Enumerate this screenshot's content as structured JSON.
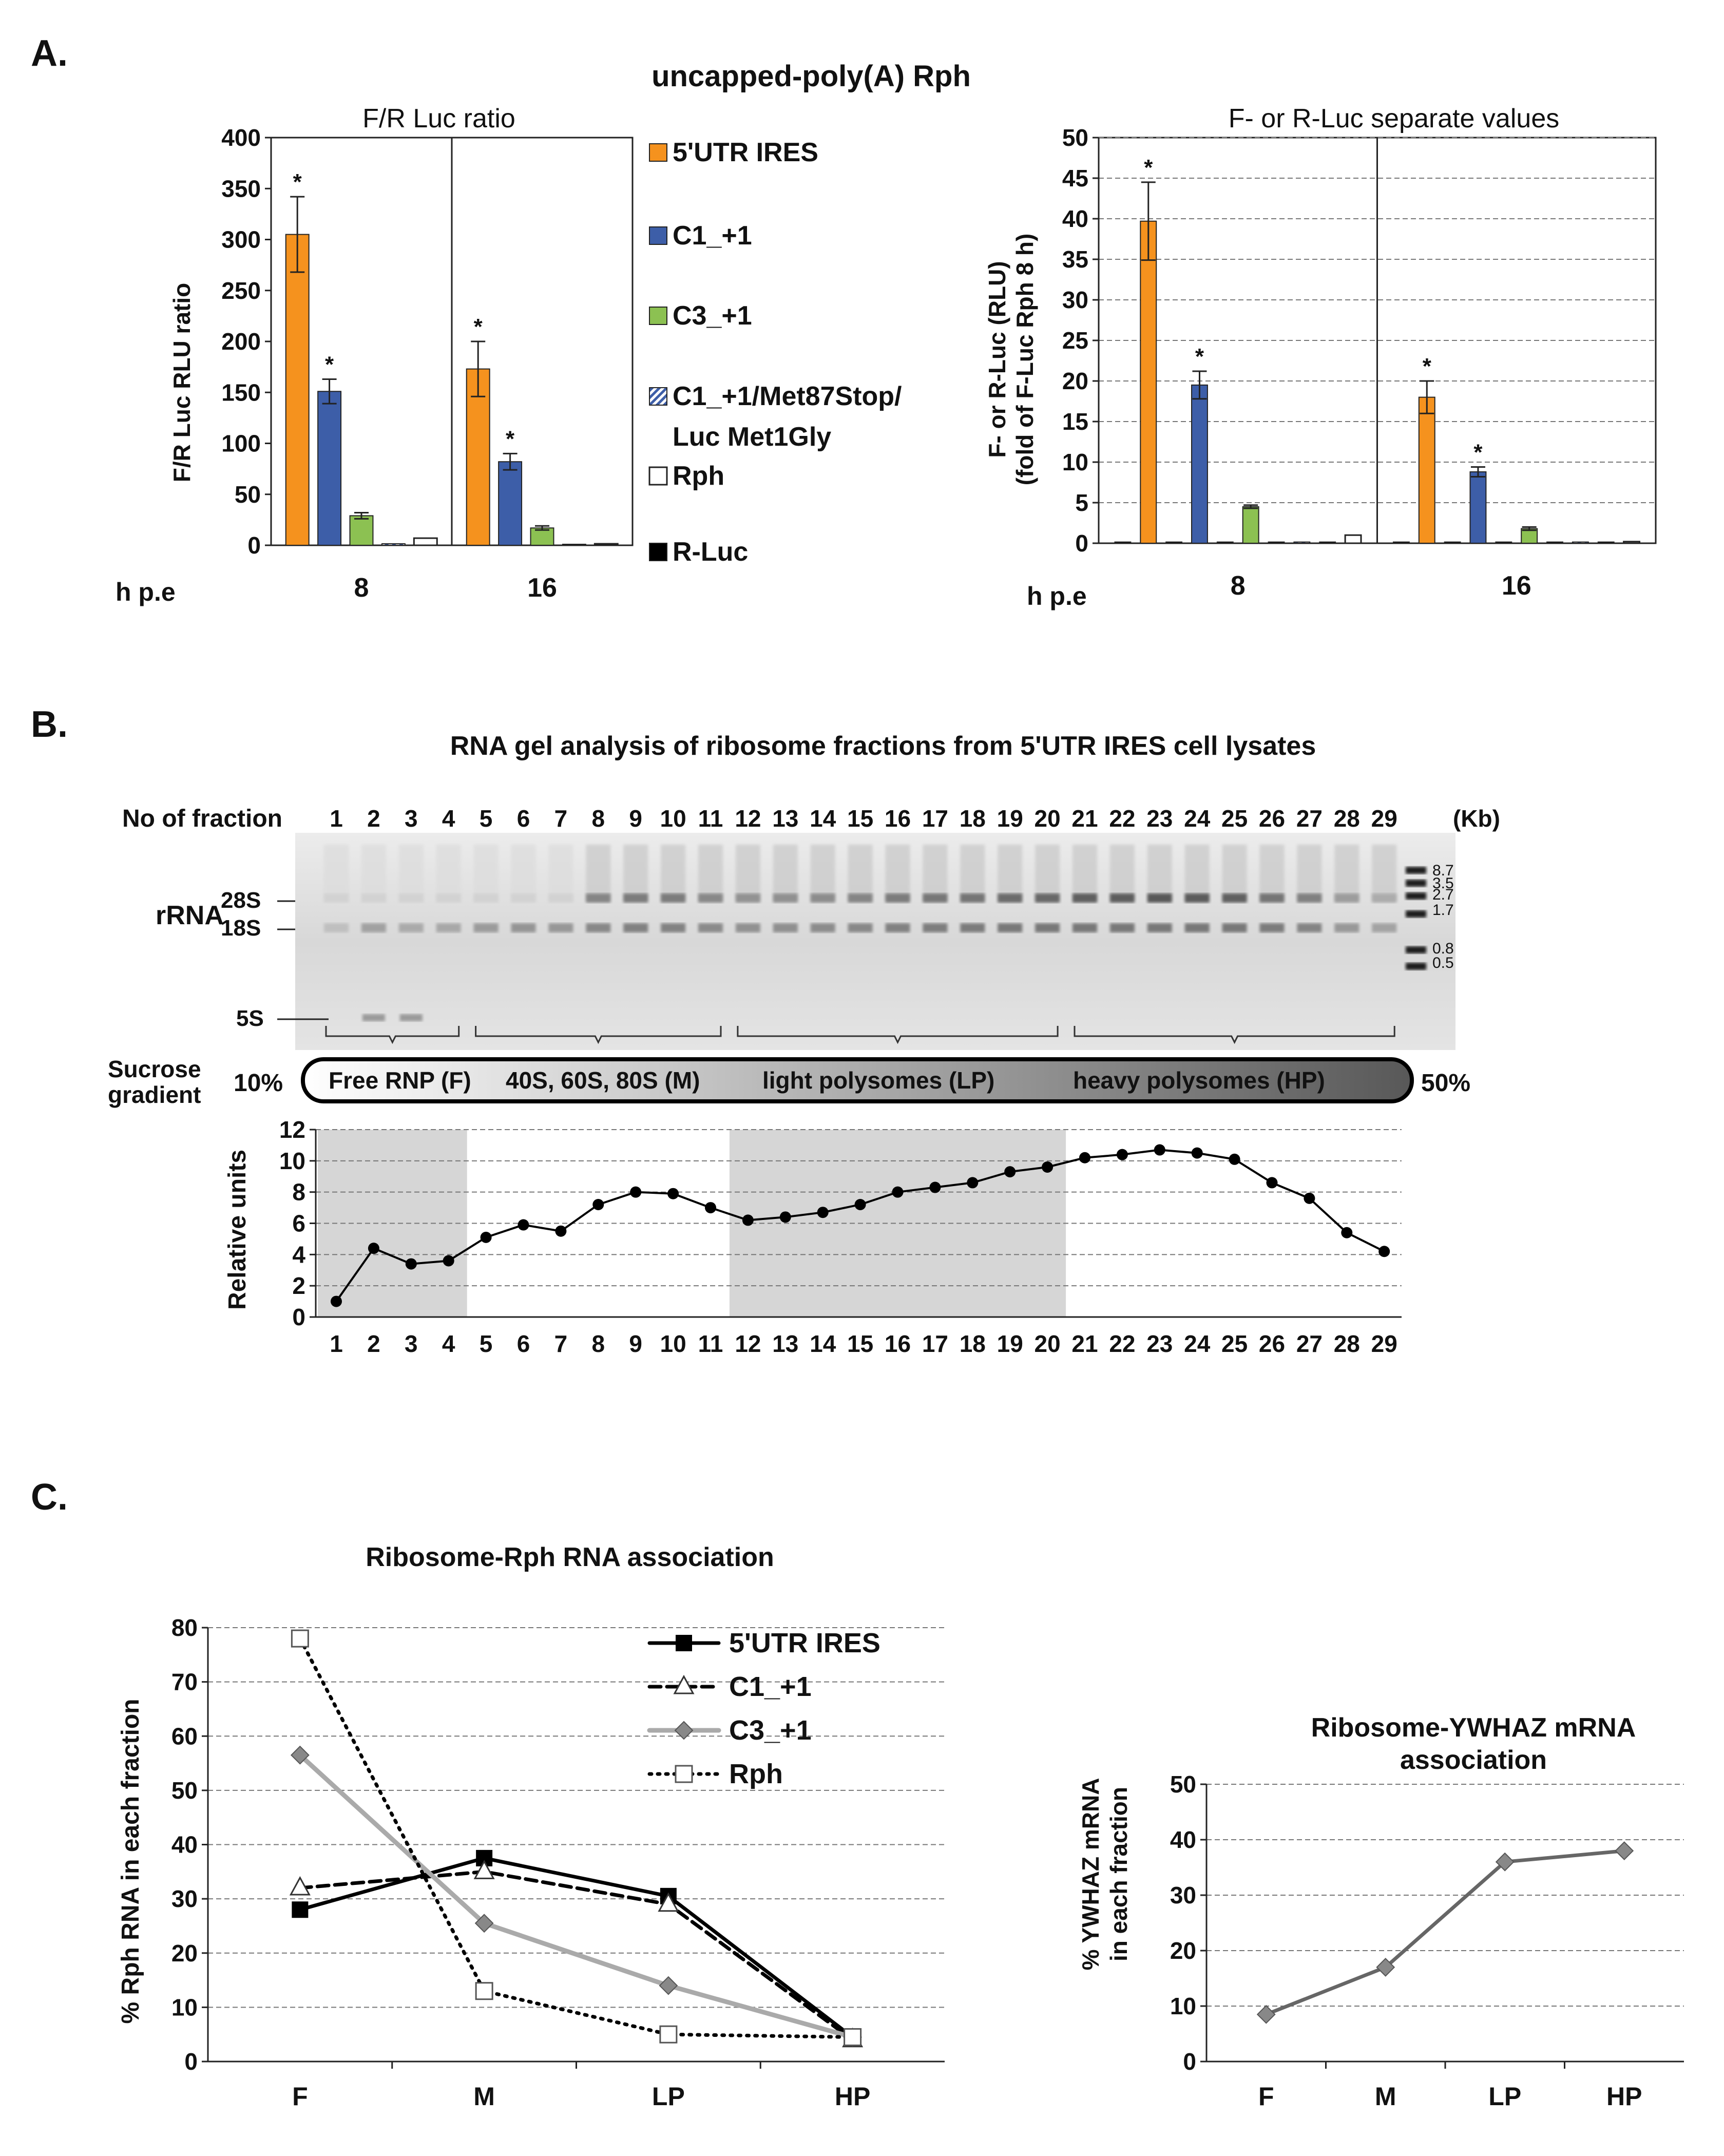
{
  "panel_letters": {
    "a": "A.",
    "b": "B.",
    "c": "C."
  },
  "panel_a": {
    "suptitle": "uncapped-poly(A) Rph",
    "xlabel": "h p.e",
    "legend": [
      "5'UTR IRES",
      "C1_+1",
      "C3_+1",
      "C1_+1/Met87Stop/",
      "Luc Met1Gly",
      "Rph",
      "R-Luc"
    ],
    "colors": {
      "ires": "#f5921e",
      "c1": "#3d5ea8",
      "c3": "#8cc152",
      "rph": "#ffffff",
      "rluc": "#000000"
    },
    "significance_mark": "*"
  },
  "panel_b": {
    "title": "RNA gel analysis of ribosome fractions from 5'UTR IRES cell lysates",
    "fraction_label": "No of fraction",
    "kb_label": "(Kb)",
    "rrna_label": "rRNA",
    "bands": [
      "28S",
      "18S",
      "5S"
    ],
    "ladder": [
      "8.7",
      "3.5",
      "2.7",
      "1.7",
      "0.8",
      "0.5"
    ],
    "sucrose_label": [
      "Sucrose",
      "gradient"
    ],
    "gradient_low": "10%",
    "gradient_high": "50%",
    "groups": [
      "Free RNP (F)",
      "40S, 60S, 80S (M)",
      "light polysomes (LP)",
      "heavy polysomes (HP)"
    ]
  },
  "panel_c": {
    "title": "Ribosome-Rph RNA association",
    "ywhaz_title_1": "Ribosome-YWHAZ mRNA",
    "ywhaz_title_2": "association"
  },
  "chart_data": [
    {
      "id": "a1",
      "type": "bar",
      "title": "F/R Luc ratio",
      "ylabel": "F/R Luc RLU ratio",
      "xlabel": "h p.e",
      "categories": [
        "8",
        "16"
      ],
      "ylim": [
        0,
        400
      ],
      "yticks": [
        0,
        50,
        100,
        150,
        200,
        250,
        300,
        350,
        400
      ],
      "series": [
        {
          "name": "5'UTR IRES",
          "values": [
            305,
            173
          ],
          "errors": [
            37,
            27
          ],
          "sig": [
            true,
            true
          ]
        },
        {
          "name": "C1_+1",
          "values": [
            151,
            82
          ],
          "errors": [
            12,
            8
          ],
          "sig": [
            true,
            true
          ]
        },
        {
          "name": "C3_+1",
          "values": [
            29,
            17
          ],
          "errors": [
            3,
            2
          ],
          "sig": [
            false,
            false
          ]
        },
        {
          "name": "C1_+1/Met87Stop/Luc Met1Gly",
          "values": [
            1.5,
            1
          ],
          "errors": [
            0,
            0
          ],
          "sig": [
            false,
            false
          ]
        },
        {
          "name": "Rph",
          "values": [
            7,
            1.5
          ],
          "errors": [
            0,
            0
          ],
          "sig": [
            false,
            false
          ]
        }
      ]
    },
    {
      "id": "a2",
      "type": "bar",
      "title": "F- or R-Luc separate values",
      "ylabel": "F- or R-Luc (RLU) (fold of F-Luc Rph 8 h)",
      "ylabel_lines": [
        "F- or R-Luc (RLU)",
        "(fold of F-Luc Rph 8 h)"
      ],
      "xlabel": "h p.e",
      "categories": [
        "8",
        "16"
      ],
      "ylim": [
        0,
        50
      ],
      "yticks": [
        0,
        5,
        10,
        15,
        20,
        25,
        30,
        35,
        40,
        45,
        50
      ],
      "series": [
        {
          "name": "R-Luc (IRES)",
          "values": [
            0.15,
            0.15
          ],
          "errors": [
            0,
            0
          ],
          "sig": [
            false,
            false
          ]
        },
        {
          "name": "5'UTR IRES",
          "values": [
            39.7,
            18
          ],
          "errors": [
            4.8,
            2
          ],
          "sig": [
            true,
            true
          ]
        },
        {
          "name": "R-Luc (C1)",
          "values": [
            0.15,
            0.15
          ],
          "errors": [
            0,
            0
          ],
          "sig": [
            false,
            false
          ]
        },
        {
          "name": "C1_+1",
          "values": [
            19.5,
            8.8
          ],
          "errors": [
            1.7,
            0.6
          ],
          "sig": [
            true,
            true
          ]
        },
        {
          "name": "R-Luc (C3)",
          "values": [
            0.15,
            0.15
          ],
          "errors": [
            0,
            0
          ],
          "sig": [
            false,
            false
          ]
        },
        {
          "name": "C3_+1",
          "values": [
            4.5,
            1.8
          ],
          "errors": [
            0.2,
            0.2
          ],
          "sig": [
            false,
            false
          ]
        },
        {
          "name": "R-Luc (Met87Stop)",
          "values": [
            0.15,
            0.15
          ],
          "errors": [
            0,
            0
          ],
          "sig": [
            false,
            false
          ]
        },
        {
          "name": "C1_+1/Met87Stop/Luc Met1Gly",
          "values": [
            0.15,
            0.15
          ],
          "errors": [
            0,
            0
          ],
          "sig": [
            false,
            false
          ]
        },
        {
          "name": "R-Luc (Rph)",
          "values": [
            0.15,
            0.15
          ],
          "errors": [
            0,
            0
          ],
          "sig": [
            false,
            false
          ]
        },
        {
          "name": "Rph",
          "values": [
            1.0,
            0.2
          ],
          "errors": [
            0,
            0
          ],
          "sig": [
            false,
            false
          ]
        }
      ]
    },
    {
      "id": "b",
      "type": "line",
      "title": "",
      "ylabel": "Relative units",
      "xlabel": "",
      "x": [
        1,
        2,
        3,
        4,
        5,
        6,
        7,
        8,
        9,
        10,
        11,
        12,
        13,
        14,
        15,
        16,
        17,
        18,
        19,
        20,
        21,
        22,
        23,
        24,
        25,
        26,
        27,
        28,
        29
      ],
      "y": [
        1.0,
        4.4,
        3.4,
        3.6,
        5.1,
        5.9,
        5.5,
        7.2,
        8.0,
        7.9,
        7.0,
        6.2,
        6.4,
        6.7,
        7.2,
        8.0,
        8.3,
        8.6,
        9.3,
        9.6,
        10.2,
        10.4,
        10.7,
        10.5,
        10.1,
        8.6,
        7.6,
        5.4,
        4.2
      ],
      "ylim": [
        0,
        12
      ],
      "yticks": [
        0,
        2,
        4,
        6,
        8,
        10,
        12
      ],
      "shaded_fractions": [
        [
          1,
          4
        ],
        [
          12,
          20
        ]
      ]
    },
    {
      "id": "c1",
      "type": "line",
      "title": "Ribosome-Rph RNA association",
      "ylabel": "% Rph RNA in each fraction",
      "categories": [
        "F",
        "M",
        "LP",
        "HP"
      ],
      "ylim": [
        0,
        80
      ],
      "yticks": [
        0,
        10,
        20,
        30,
        40,
        50,
        60,
        70,
        80
      ],
      "series": [
        {
          "name": "5'UTR IRES",
          "values": [
            28,
            37.5,
            30.5,
            4.5
          ],
          "color": "#000000",
          "marker": "square-filled",
          "dash": "solid"
        },
        {
          "name": "C1_+1",
          "values": [
            32,
            35,
            29,
            4
          ],
          "color": "#000000",
          "marker": "triangle-open",
          "dash": "dashed"
        },
        {
          "name": "C3_+1",
          "values": [
            56.5,
            25.5,
            14,
            4.5
          ],
          "color": "#aaaaaa",
          "marker": "diamond-gray",
          "dash": "solid"
        },
        {
          "name": "Rph",
          "values": [
            78,
            13,
            5,
            4.5
          ],
          "color": "#000000",
          "marker": "square-open",
          "dash": "dotted"
        }
      ]
    },
    {
      "id": "c2",
      "type": "line",
      "title": "Ribosome-YWHAZ mRNA association",
      "ylabel": "% YWHAZ mRNA in each fraction",
      "ylabel_lines": [
        "% YWHAZ mRNA",
        "in each fraction"
      ],
      "categories": [
        "F",
        "M",
        "LP",
        "HP"
      ],
      "ylim": [
        0,
        50
      ],
      "yticks": [
        0,
        10,
        20,
        30,
        40,
        50
      ],
      "series": [
        {
          "name": "YWHAZ",
          "values": [
            8.5,
            17,
            36,
            38
          ],
          "color": "#666666",
          "marker": "diamond-gray",
          "dash": "solid"
        }
      ]
    }
  ]
}
